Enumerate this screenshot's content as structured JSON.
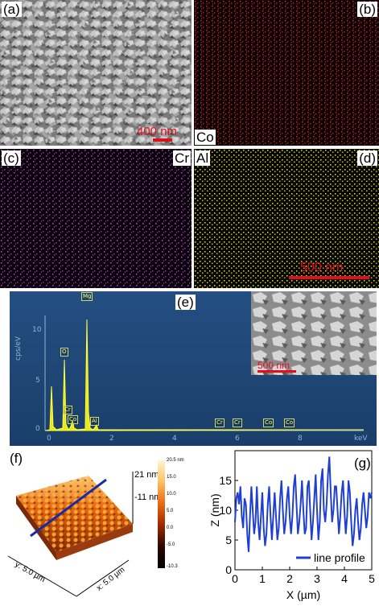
{
  "panels": {
    "a": {
      "label": "(a)",
      "scale": "400 nm"
    },
    "b": {
      "label": "(b)",
      "element": "Co"
    },
    "c": {
      "label": "(c)",
      "element": "Cr"
    },
    "d": {
      "label": "(d)",
      "element": "Al",
      "scale": "500 nm"
    },
    "e": {
      "label": "(e)",
      "inset_scale": "500 nm",
      "ylabel": "cps/eV",
      "xunit": "keV",
      "yticks": [
        "10",
        "5",
        "0"
      ],
      "xticks": [
        "0",
        "2",
        "4",
        "6",
        "8"
      ],
      "peaks": [
        "Mg",
        "O",
        "Cr",
        "Co",
        "Al",
        "Cr",
        "Cr",
        "Co",
        "Co"
      ]
    },
    "f": {
      "label": "(f)",
      "zmax": "21 nm",
      "zmin": "-11 nm",
      "yaxis": "y: 5.0 µm",
      "xaxis": "x: 5.0 µm",
      "colorbar": [
        "20.5 nm",
        "15.0",
        "10.0",
        "5.0",
        "0.0",
        "-5.0",
        "-10.3"
      ]
    },
    "g": {
      "label": "(g)",
      "legend": "line profile"
    }
  },
  "colors": {
    "co_map": "#e0202a",
    "cr_map": "#d040d8",
    "al_map": "#e8e040",
    "edx_bg": "#1f4a7a",
    "profile": "#1f3fd0"
  },
  "chart_data": {
    "type": "line",
    "title": "",
    "xlabel": "X (µm)",
    "ylabel": "Z (nm)",
    "xlim": [
      0,
      5
    ],
    "ylim": [
      0,
      20
    ],
    "xticks": [
      "0",
      "1",
      "2",
      "3",
      "4",
      "5"
    ],
    "yticks": [
      "0",
      "5",
      "10",
      "15"
    ],
    "series": [
      {
        "name": "line profile",
        "x": [
          0.0,
          0.05,
          0.1,
          0.15,
          0.2,
          0.25,
          0.3,
          0.35,
          0.4,
          0.45,
          0.5,
          0.55,
          0.6,
          0.65,
          0.7,
          0.75,
          0.8,
          0.85,
          0.9,
          0.95,
          1.0,
          1.05,
          1.1,
          1.15,
          1.2,
          1.25,
          1.3,
          1.35,
          1.4,
          1.45,
          1.5,
          1.55,
          1.6,
          1.65,
          1.7,
          1.75,
          1.8,
          1.85,
          1.9,
          1.95,
          2.0,
          2.05,
          2.1,
          2.15,
          2.2,
          2.25,
          2.3,
          2.35,
          2.4,
          2.45,
          2.5,
          2.55,
          2.6,
          2.65,
          2.7,
          2.75,
          2.8,
          2.85,
          2.9,
          2.95,
          3.0,
          3.05,
          3.1,
          3.15,
          3.2,
          3.25,
          3.3,
          3.35,
          3.4,
          3.45,
          3.5,
          3.55,
          3.6,
          3.65,
          3.7,
          3.75,
          3.8,
          3.85,
          3.9,
          3.95,
          4.0,
          4.05,
          4.1,
          4.15,
          4.2,
          4.25,
          4.3,
          4.35,
          4.4,
          4.45,
          4.5,
          4.55,
          4.6,
          4.65,
          4.7,
          4.75,
          4.8,
          4.85,
          4.9,
          4.95,
          5.0
        ],
        "y": [
          8,
          12,
          13,
          11,
          14,
          9,
          7,
          12,
          11,
          6,
          3,
          9,
          14,
          10,
          6,
          8,
          14,
          8,
          5,
          9,
          13,
          7,
          4,
          6,
          11,
          14,
          9,
          5,
          9,
          13,
          9,
          5,
          7,
          12,
          15,
          10,
          6,
          8,
          12,
          14,
          9,
          6,
          9,
          14,
          16,
          11,
          6,
          8,
          11,
          15,
          10,
          6,
          7,
          14,
          15,
          10,
          5,
          8,
          12,
          16,
          10,
          5,
          8,
          15,
          17,
          10,
          8,
          11,
          16,
          19,
          13,
          8,
          10,
          14,
          14,
          10,
          6,
          9,
          13,
          15,
          10,
          6,
          9,
          15,
          13,
          8,
          4,
          6,
          10,
          12,
          8,
          5,
          7,
          11,
          13,
          10,
          7,
          9,
          13,
          12,
          13
        ]
      }
    ]
  }
}
